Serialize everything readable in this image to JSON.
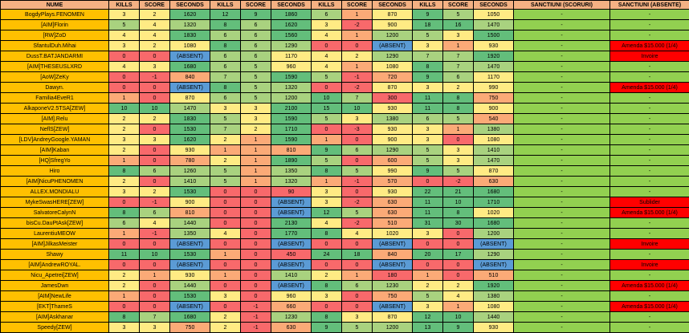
{
  "headers": [
    "NUME",
    "KILLS",
    "SCORE",
    "SECONDS",
    "KILLS",
    "SCORE",
    "SECONDS",
    "KILLS",
    "SCORE",
    "SECONDS",
    "KILLS",
    "SCORE",
    "SECONDS",
    "SANCTIUNI (SCORURI)",
    "SANCTIUNI (ABSENTE)"
  ],
  "rows": [
    [
      "BogdyPlays.FENOMEN",
      "3",
      "2",
      "1620",
      "12",
      "9",
      "1860",
      "6",
      "1",
      "870",
      "9",
      "5",
      "1050",
      "-",
      "-"
    ],
    [
      "[AIM]Florin",
      "5",
      "4",
      "1320",
      "8",
      "6",
      "1620",
      "3",
      "-2",
      "900",
      "18",
      "16",
      "1470",
      "-",
      "-"
    ],
    [
      "[RW]ZoD",
      "4",
      "4",
      "1830",
      "6",
      "6",
      "1560",
      "4",
      "1",
      "1200",
      "5",
      "3",
      "1500",
      "-",
      "-"
    ],
    [
      "SfantulDuh.Mihai",
      "3",
      "2",
      "1080",
      "8",
      "6",
      "1290",
      "0",
      "0",
      "(ABSENT)",
      "3",
      "1",
      "930",
      "-",
      "Amenda $15.000 (1/4)"
    ],
    [
      "DussT.BATJANDARMI",
      "0",
      "0",
      "(ABSENT)",
      "6",
      "6",
      "1170",
      "4",
      "2",
      "1290",
      "7",
      "7",
      "1920",
      "-",
      "Invoire"
    ],
    [
      "[AIM]THESEUSLXRD",
      "4",
      "3",
      "1680",
      "6",
      "5",
      "960",
      "4",
      "1",
      "1080",
      "8",
      "7",
      "1470",
      "-",
      "-"
    ],
    [
      "[AoW]ZeKy",
      "0",
      "-1",
      "840",
      "7",
      "5",
      "1590",
      "5",
      "-1",
      "720",
      "9",
      "6",
      "1170",
      "-",
      "-"
    ],
    [
      "Dawyn.",
      "0",
      "0",
      "(ABSENT)",
      "8",
      "5",
      "1320",
      "0",
      "-2",
      "870",
      "3",
      "2",
      "990",
      "-",
      "Amenda $15.000 (1/4)"
    ],
    [
      "Familia4EveR1",
      "1",
      "0",
      "870",
      "6",
      "5",
      "1200",
      "10",
      "7",
      "300",
      "11",
      "8",
      "750",
      "-",
      "-"
    ],
    [
      "AlkaponeV2.5TSA[ZEW]",
      "10",
      "10",
      "1470",
      "3",
      "3",
      "2100",
      "15",
      "10",
      "930",
      "11",
      "8",
      "900",
      "-",
      "-"
    ],
    [
      "[AIM].Relu",
      "2",
      "2",
      "1830",
      "5",
      "3",
      "1590",
      "5",
      "3",
      "1380",
      "6",
      "5",
      "540",
      "-",
      "-"
    ],
    [
      "NeflS[ZEW]",
      "2",
      "0",
      "1530",
      "7",
      "2",
      "1710",
      "0",
      "-3",
      "930",
      "3",
      "1",
      "1380",
      "-",
      "-"
    ],
    [
      "[LDV]AndreyGoogle.YAMAN",
      "3",
      "3",
      "1620",
      "2",
      "1",
      "1590",
      "1",
      "0",
      "900",
      "3",
      "0",
      "1080",
      "-",
      "-"
    ],
    [
      "[AIM]Kaban",
      "2",
      "0",
      "930",
      "1",
      "1",
      "810",
      "9",
      "6",
      "1290",
      "5",
      "3",
      "1410",
      "-",
      "-"
    ],
    [
      "[HQ]SfregYo",
      "1",
      "0",
      "780",
      "2",
      "1",
      "1890",
      "5",
      "0",
      "600",
      "5",
      "3",
      "1470",
      "-",
      "-"
    ],
    [
      "Hiro",
      "8",
      "6",
      "1260",
      "5",
      "1",
      "1350",
      "8",
      "5",
      "990",
      "9",
      "5",
      "870",
      "-",
      "-"
    ],
    [
      "[AIM]NicuPHENOMEN",
      "2",
      "0",
      "1410",
      "5",
      "1",
      "1320",
      "1",
      "-1",
      "570",
      "0",
      "-2",
      "630",
      "-",
      "-"
    ],
    [
      "ALLEX.MONDIALU",
      "3",
      "2",
      "1530",
      "0",
      "0",
      "90",
      "3",
      "0",
      "930",
      "22",
      "21",
      "1680",
      "-",
      "-"
    ],
    [
      "MykeSwasHERE[ZEW]",
      "0",
      "-1",
      "900",
      "0",
      "0",
      "(ABSENT)",
      "3",
      "-2",
      "630",
      "11",
      "10",
      "1710",
      "-",
      "Sublider"
    ],
    [
      "SalvatoreCalynN",
      "8",
      "6",
      "810",
      "0",
      "0",
      "(ABSENT)",
      "12",
      "5",
      "630",
      "11",
      "8",
      "1020",
      "-",
      "Amenda $15.000 (1/4)"
    ],
    [
      "bisCu.DauPtAsk[ZEW]",
      "6",
      "4",
      "1440",
      "0",
      "0",
      "2130",
      "4",
      "-2",
      "510",
      "31",
      "30",
      "1680",
      "-",
      "-"
    ],
    [
      "LaurentiuMEOW",
      "1",
      "-1",
      "1350",
      "4",
      "0",
      "1770",
      "8",
      "4",
      "1020",
      "3",
      "0",
      "1200",
      "-",
      "-"
    ],
    [
      "[AIM]JilkasMeister",
      "0",
      "0",
      "(ABSENT)",
      "0",
      "0",
      "(ABSENT)",
      "0",
      "0",
      "(ABSENT)",
      "0",
      "0",
      "(ABSENT)",
      "-",
      "Invoire"
    ],
    [
      "Shawy",
      "11",
      "10",
      "1530",
      "1",
      "0",
      "450",
      "24",
      "18",
      "840",
      "20",
      "17",
      "1290",
      "-",
      "-"
    ],
    [
      "[AIM]AndrewROYAL.",
      "0",
      "0",
      "(ABSENT)",
      "0",
      "0",
      "(ABSENT)",
      "0",
      "0",
      "(ABSENT)",
      "0",
      "0",
      "(ABSENT)",
      "-",
      "Invoire"
    ],
    [
      "Nicu_Apetrei[ZEW]",
      "2",
      "1",
      "930",
      "1",
      "0",
      "1410",
      "2",
      "1",
      "180",
      "1",
      "0",
      "510",
      "-",
      "-"
    ],
    [
      "JamesDwn",
      "2",
      "0",
      "1440",
      "0",
      "0",
      "(ABSENT)",
      "8",
      "6",
      "1230",
      "2",
      "2",
      "1920",
      "-",
      "Amenda $15.000 (1/4)"
    ],
    [
      "[AIM]NewLife",
      "1",
      "0",
      "1530",
      "3",
      "0",
      "960",
      "3",
      "0",
      "750",
      "5",
      "4",
      "1380",
      "-",
      "-"
    ],
    [
      "[EKT]ThameS",
      "0",
      "0",
      "(ABSENT)",
      "0",
      "-1",
      "660",
      "0",
      "0",
      "(ABSENT)",
      "3",
      "1",
      "1080",
      "-",
      "Amenda $15.000 (1/4)"
    ],
    [
      "[AIM]Askhanar",
      "8",
      "7",
      "1680",
      "2",
      "-1",
      "1230",
      "8",
      "3",
      "870",
      "12",
      "10",
      "1440",
      "-",
      "-"
    ],
    [
      "Speedy[ZEW]",
      "3",
      "3",
      "750",
      "2",
      "-1",
      "630",
      "9",
      "5",
      "1200",
      "13",
      "9",
      "930",
      "-",
      "-"
    ]
  ],
  "colors": {
    "green": "#63be7b",
    "light_green": "#a9d27f",
    "yellow": "#ffeb84",
    "orange": "#fbaa77",
    "red": "#f8696b",
    "blue": "#5b9bd5",
    "name_bg": "#ffc000",
    "header_bg": "#f4b183",
    "sanction_bg": "#92d050",
    "sanction_red": "#ff0000"
  }
}
